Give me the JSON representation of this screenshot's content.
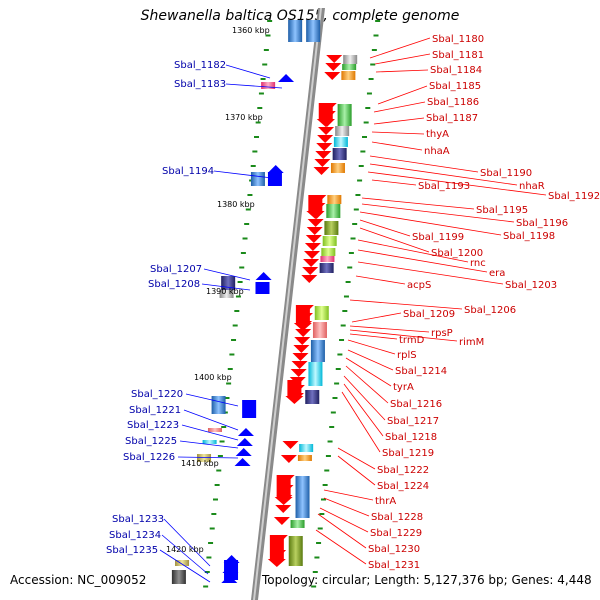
{
  "title": "Shewanella baltica OS155, complete genome",
  "accession": "Accession: NC_009052",
  "topology": "Topology: circular; Length: 5,127,376 bp; Genes: 4,448",
  "kbp_labels": [
    "1360 kbp",
    "1370 kbp",
    "1380 kbp",
    "1390 kbp",
    "1400 kbp",
    "1410 kbp",
    "1420 kbp"
  ],
  "genes_right": [
    "Sbal_1180",
    "Sbal_1181",
    "Sbal_1184",
    "Sbal_1185",
    "Sbal_1186",
    "Sbal_1187",
    "thyA",
    "nhaA",
    "Sbal_1190",
    "nhaR",
    "Sbal_1192",
    "Sbal_1193",
    "Sbal_1195",
    "Sbal_1196",
    "Sbal_1198",
    "Sbal_1199",
    "Sbal_1200",
    "rnc",
    "era",
    "Sbal_1203",
    "acpS",
    "Sbal_1206",
    "Sbal_1209",
    "rpsP",
    "rimM",
    "trmD",
    "rplS",
    "Sbal_1214",
    "tyrA",
    "Sbal_1216",
    "Sbal_1217",
    "Sbal_1218",
    "Sbal_1219",
    "Sbal_1222",
    "Sbal_1224",
    "thrA",
    "Sbal_1228",
    "Sbal_1229",
    "Sbal_1230",
    "Sbal_1231"
  ],
  "genes_left": [
    "Sbal_1182",
    "Sbal_1183",
    "Sbal_1194",
    "Sbal_1207",
    "Sbal_1208",
    "Sbal_1220",
    "Sbal_1221",
    "Sbal_1223",
    "Sbal_1225",
    "Sbal_1226",
    "Sbal_1233",
    "Sbal_1234",
    "Sbal_1235"
  ],
  "colors": {
    "forward_strand": "#ff0000",
    "reverse_strand": "#0000ff",
    "right_label": "#cc0000",
    "left_label": "#0000aa",
    "tick": "#1a8a1a",
    "backbone": "#888888"
  }
}
